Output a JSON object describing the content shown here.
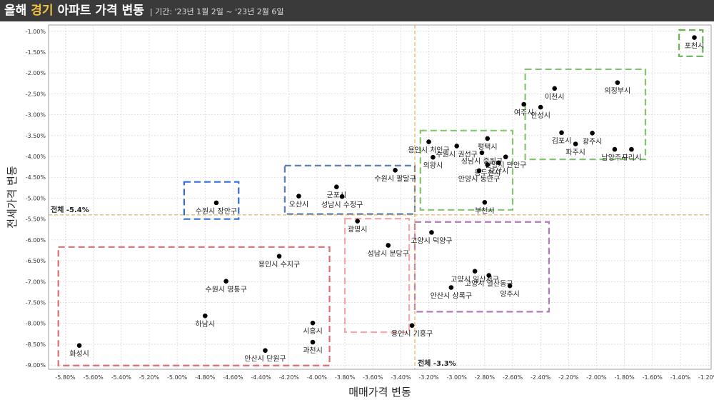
{
  "header": {
    "title_part1": "올해",
    "title_highlight": "경기",
    "title_part2": "아파트 가격 변동",
    "subtitle": "| 기간: '23년 1월 2일 ~ '23년 2월 6일"
  },
  "chart_data": {
    "type": "scatter",
    "xlabel": "매매가격 변동",
    "ylabel": "전세가격 변동",
    "xlim": [
      -5.92,
      -1.18
    ],
    "ylim": [
      -9.1,
      -0.85
    ],
    "xticks": [
      -5.8,
      -5.6,
      -5.4,
      -5.2,
      -5.0,
      -4.8,
      -4.6,
      -4.4,
      -4.2,
      -4.0,
      -3.8,
      -3.6,
      -3.4,
      -3.2,
      -3.0,
      -2.8,
      -2.6,
      -2.4,
      -2.2,
      -2.0,
      -1.8,
      -1.6,
      -1.4,
      -1.2
    ],
    "xtick_labels": [
      "-5.80%",
      "-5.60%",
      "-5.40%",
      "-5.20%",
      "-5.00%",
      "-4.80%",
      "-4.60%",
      "-4.40%",
      "-4.20%",
      "-4.00%",
      "-3.80%",
      "-3.60%",
      "-3.40%",
      "-3.20%",
      "-3.00%",
      "-2.80%",
      "-2.60%",
      "-2.40%",
      "-2.20%",
      "-2.00%",
      "-1.80%",
      "-1.60%",
      "-1.40%",
      "-1.20%"
    ],
    "yticks": [
      -1.0,
      -1.5,
      -2.0,
      -2.5,
      -3.0,
      -3.5,
      -4.0,
      -4.5,
      -5.0,
      -5.5,
      -6.0,
      -6.5,
      -7.0,
      -7.5,
      -8.0,
      -8.5,
      -9.0
    ],
    "ytick_labels": [
      "-1.00%",
      "-1.50%",
      "-2.00%",
      "-2.50%",
      "-3.00%",
      "-3.50%",
      "-4.00%",
      "-4.50%",
      "-5.00%",
      "-5.50%",
      "-6.00%",
      "-6.50%",
      "-7.00%",
      "-7.50%",
      "-8.00%",
      "-8.50%",
      "-9.00%"
    ],
    "reference_lines": {
      "x": -3.3,
      "x_label": "전체 -3.3%",
      "y": -5.4,
      "y_label": "전체 -5.4%"
    },
    "points": [
      {
        "name": "포천시",
        "x": -1.3,
        "y": -1.15
      },
      {
        "name": "의정부시",
        "x": -1.85,
        "y": -2.23
      },
      {
        "name": "이천시",
        "x": -2.3,
        "y": -2.37
      },
      {
        "name": "여주시",
        "x": -2.52,
        "y": -2.75
      },
      {
        "name": "안성시",
        "x": -2.4,
        "y": -2.82
      },
      {
        "name": "김포시",
        "x": -2.25,
        "y": -3.43
      },
      {
        "name": "광주시",
        "x": -2.03,
        "y": -3.44
      },
      {
        "name": "파주시",
        "x": -2.15,
        "y": -3.7
      },
      {
        "name": "남양주시",
        "x": -1.87,
        "y": -3.83
      },
      {
        "name": "구리시",
        "x": -1.75,
        "y": -3.83
      },
      {
        "name": "평택시",
        "x": -2.78,
        "y": -3.57
      },
      {
        "name": "용인시 처인구",
        "x": -3.2,
        "y": -3.65
      },
      {
        "name": "수원시 권선구",
        "x": -3.0,
        "y": -3.75
      },
      {
        "name": "의왕시",
        "x": -3.17,
        "y": -4.02
      },
      {
        "name": "성남시 중원구",
        "x": -2.82,
        "y": -3.91
      },
      {
        "name": "안양시 만안구",
        "x": -2.65,
        "y": -4.01
      },
      {
        "name": "오산시",
        "x": -2.7,
        "y": -4.15
      },
      {
        "name": "동두천시",
        "x": -2.78,
        "y": -4.2
      },
      {
        "name": "안양시 동안구",
        "x": -2.84,
        "y": -4.34
      },
      {
        "name": "부천시",
        "x": -2.8,
        "y": -5.1
      },
      {
        "name": "수원시 팔달구",
        "x": -3.44,
        "y": -4.33
      },
      {
        "name": "군포시",
        "x": -3.86,
        "y": -4.73
      },
      {
        "name": "오산시",
        "x": -4.13,
        "y": -4.95
      },
      {
        "name": "성남시 수정구",
        "x": -3.82,
        "y": -4.96
      },
      {
        "name": "수원시 장안구",
        "x": -4.72,
        "y": -5.11
      },
      {
        "name": "광명시",
        "x": -3.71,
        "y": -5.55
      },
      {
        "name": "고양시 덕양구",
        "x": -3.18,
        "y": -5.82
      },
      {
        "name": "성남시 분당구",
        "x": -3.49,
        "y": -6.13
      },
      {
        "name": "고양시 일산서구",
        "x": -2.87,
        "y": -6.75
      },
      {
        "name": "고양시 일산동구",
        "x": -2.77,
        "y": -6.85
      },
      {
        "name": "안산시 상록구",
        "x": -3.04,
        "y": -7.14
      },
      {
        "name": "양주시",
        "x": -2.62,
        "y": -7.1
      },
      {
        "name": "용인시 기흥구",
        "x": -3.32,
        "y": -8.05
      },
      {
        "name": "용인시 수지구",
        "x": -4.27,
        "y": -6.39
      },
      {
        "name": "수원시 영통구",
        "x": -4.65,
        "y": -6.99
      },
      {
        "name": "하남시",
        "x": -4.8,
        "y": -7.82
      },
      {
        "name": "시흥시",
        "x": -4.03,
        "y": -7.99
      },
      {
        "name": "화성시",
        "x": -5.7,
        "y": -8.53
      },
      {
        "name": "과천시",
        "x": -4.03,
        "y": -8.45
      },
      {
        "name": "안산시 단원구",
        "x": -4.37,
        "y": -8.65
      }
    ],
    "cluster_boxes": [
      {
        "color": "#2f6fd6",
        "x0": -4.95,
        "x1": -4.56,
        "y0": -4.61,
        "y1": -5.5
      },
      {
        "color": "#5b7db1",
        "x0": -4.23,
        "x1": -3.3,
        "y0": -4.22,
        "y1": -5.38
      },
      {
        "color": "#82c56e",
        "x0": -3.26,
        "x1": -2.6,
        "y0": -3.38,
        "y1": -5.28
      },
      {
        "color": "#82c56e",
        "x0": -2.51,
        "x1": -1.65,
        "y0": -1.91,
        "y1": -4.07
      },
      {
        "color": "#6bb25a",
        "x0": -1.41,
        "x1": -1.24,
        "y0": -0.97,
        "y1": -1.6
      },
      {
        "color": "#f4a8a8",
        "x0": -3.8,
        "x1": -3.34,
        "y0": -5.49,
        "y1": -8.21
      },
      {
        "color": "#b27ab8",
        "x0": -3.3,
        "x1": -2.34,
        "y0": -5.57,
        "y1": -7.72
      },
      {
        "color": "#e06c70",
        "x0": -5.85,
        "x1": -3.91,
        "y0": -6.17,
        "y1": -9.01
      }
    ]
  }
}
